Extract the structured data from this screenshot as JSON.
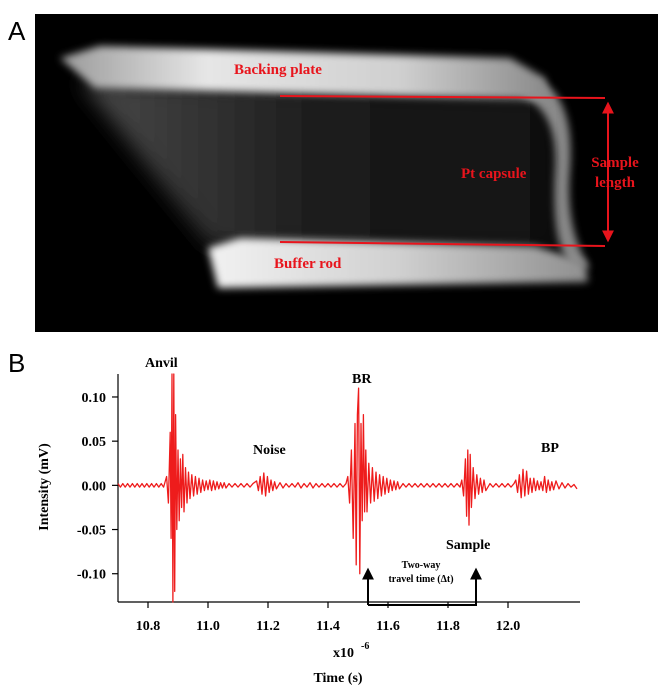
{
  "panel_a": {
    "label": "A",
    "annotations": [
      "Backing plate",
      "Pt capsule",
      "Buffer rod",
      "Sample",
      "length"
    ]
  },
  "chart_data": {
    "type": "line",
    "panel_label": "B",
    "x_label": "Time (s)",
    "y_label": "Intensity (mV)",
    "x_multiplier": "x10",
    "x_multiplier_exponent": "-6",
    "annotations": [
      "Anvil",
      "Noise",
      "BR",
      "Sample",
      "BP",
      "Two-way",
      "travel time (Δt)"
    ],
    "color": "#ee1c1c",
    "xlim": [
      10.7,
      12.24
    ],
    "ylim": [
      -0.132,
      0.126
    ],
    "xticks": [
      10.8,
      {
        "value": 11.0,
        "label": "11.0"
      },
      11.2,
      11.4,
      11.6,
      11.8,
      {
        "value": 12.0,
        "label": "12.0"
      }
    ],
    "yticks": [
      {
        "value": 0.1,
        "label": "0.10"
      },
      0.05,
      {
        "value": 0.0,
        "label": "0.00"
      },
      -0.05,
      {
        "value": -0.1,
        "label": "-0.10"
      }
    ],
    "x": [
      10.7,
      10.708,
      10.716,
      10.724,
      10.732,
      10.74,
      10.748,
      10.756,
      10.764,
      10.772,
      10.78,
      10.788,
      10.796,
      10.804,
      10.812,
      10.82,
      10.828,
      10.836,
      10.844,
      10.852,
      10.862,
      10.868,
      10.874,
      10.877,
      10.88,
      10.883,
      10.886,
      10.889,
      10.892,
      10.896,
      10.9,
      10.904,
      10.908,
      10.912,
      10.916,
      10.92,
      10.925,
      10.93,
      10.935,
      10.94,
      10.946,
      10.952,
      10.958,
      10.964,
      10.97,
      10.976,
      10.982,
      10.988,
      10.994,
      11.0,
      11.006,
      11.012,
      11.018,
      11.024,
      11.03,
      11.036,
      11.042,
      11.048,
      11.054,
      11.06,
      11.07,
      11.08,
      11.09,
      11.1,
      11.11,
      11.12,
      11.13,
      11.14,
      11.15,
      11.162,
      11.168,
      11.174,
      11.18,
      11.186,
      11.192,
      11.198,
      11.204,
      11.21,
      11.216,
      11.222,
      11.228,
      11.24,
      11.25,
      11.26,
      11.27,
      11.28,
      11.29,
      11.3,
      11.31,
      11.32,
      11.33,
      11.34,
      11.35,
      11.36,
      11.37,
      11.38,
      11.39,
      11.4,
      11.41,
      11.42,
      11.43,
      11.44,
      11.45,
      11.46,
      11.466,
      11.472,
      11.478,
      11.484,
      11.49,
      11.494,
      11.498,
      11.502,
      11.506,
      11.51,
      11.514,
      11.518,
      11.522,
      11.526,
      11.53,
      11.536,
      11.542,
      11.548,
      11.554,
      11.56,
      11.566,
      11.572,
      11.578,
      11.584,
      11.59,
      11.596,
      11.602,
      11.608,
      11.614,
      11.62,
      11.626,
      11.632,
      11.638,
      11.65,
      11.66,
      11.67,
      11.68,
      11.69,
      11.7,
      11.71,
      11.72,
      11.73,
      11.74,
      11.75,
      11.76,
      11.77,
      11.78,
      11.79,
      11.8,
      11.81,
      11.82,
      11.83,
      11.84,
      11.846,
      11.852,
      11.858,
      11.862,
      11.866,
      11.87,
      11.874,
      11.878,
      11.884,
      11.89,
      11.896,
      11.902,
      11.908,
      11.914,
      11.92,
      11.926,
      11.94,
      11.95,
      11.96,
      11.97,
      11.98,
      11.99,
      12.0,
      12.01,
      12.02,
      12.026,
      12.032,
      12.038,
      12.044,
      12.05,
      12.056,
      12.062,
      12.068,
      12.074,
      12.08,
      12.086,
      12.092,
      12.098,
      12.104,
      12.11,
      12.116,
      12.122,
      12.128,
      12.134,
      12.14,
      12.146,
      12.152,
      12.16,
      12.17,
      12.18,
      12.19,
      12.2,
      12.21,
      12.22,
      12.23
    ],
    "values": [
      0.002,
      -0.002,
      0.002,
      -0.002,
      0.002,
      -0.002,
      0.002,
      -0.002,
      0.002,
      -0.002,
      0.002,
      -0.002,
      0.002,
      -0.002,
      0.002,
      -0.002,
      0.002,
      -0.002,
      0.002,
      -0.002,
      0.01,
      -0.02,
      0.06,
      -0.06,
      0.126,
      -0.132,
      0.126,
      -0.12,
      0.08,
      -0.05,
      0.04,
      -0.04,
      0.03,
      -0.025,
      0.035,
      -0.03,
      0.02,
      -0.02,
      0.015,
      -0.015,
      0.012,
      -0.012,
      0.01,
      -0.01,
      0.008,
      -0.008,
      0.006,
      -0.006,
      0.005,
      -0.005,
      0.006,
      -0.006,
      0.005,
      -0.005,
      0.004,
      -0.004,
      0.003,
      -0.003,
      0.003,
      -0.003,
      0.002,
      -0.002,
      0.002,
      -0.002,
      0.002,
      -0.002,
      0.002,
      -0.002,
      0.002,
      0.005,
      -0.006,
      0.01,
      -0.01,
      0.014,
      -0.012,
      0.01,
      -0.008,
      0.006,
      -0.006,
      0.004,
      -0.004,
      0.003,
      -0.003,
      0.002,
      -0.002,
      0.002,
      -0.002,
      0.003,
      -0.003,
      0.002,
      -0.002,
      0.003,
      -0.003,
      0.002,
      -0.002,
      0.002,
      -0.002,
      0.002,
      -0.002,
      0.002,
      -0.002,
      0.002,
      -0.002,
      0.002,
      0.01,
      -0.02,
      0.04,
      -0.06,
      0.07,
      -0.09,
      0.08,
      0.11,
      -0.1,
      0.07,
      -0.04,
      0.08,
      -0.03,
      0.04,
      -0.03,
      0.025,
      -0.02,
      0.02,
      -0.018,
      0.015,
      -0.015,
      0.012,
      -0.012,
      0.01,
      -0.01,
      0.008,
      -0.008,
      0.006,
      -0.006,
      0.005,
      -0.005,
      0.004,
      -0.004,
      0.002,
      -0.002,
      0.002,
      -0.002,
      0.002,
      -0.002,
      0.002,
      -0.002,
      0.002,
      -0.002,
      0.002,
      -0.002,
      0.002,
      -0.002,
      0.002,
      -0.002,
      0.002,
      -0.002,
      0.002,
      -0.002,
      0.006,
      -0.012,
      0.03,
      -0.035,
      0.04,
      -0.045,
      0.035,
      -0.025,
      0.02,
      -0.015,
      0.012,
      -0.01,
      0.008,
      -0.008,
      0.006,
      -0.006,
      0.002,
      -0.002,
      0.002,
      -0.002,
      0.002,
      -0.002,
      0.002,
      -0.002,
      0.002,
      0.006,
      -0.008,
      0.012,
      -0.014,
      0.018,
      -0.012,
      0.016,
      -0.01,
      0.008,
      -0.008,
      0.008,
      -0.006,
      0.005,
      -0.005,
      0.004,
      -0.006,
      0.01,
      -0.008,
      0.006,
      -0.006,
      0.004,
      -0.005,
      0.005,
      -0.004,
      0.003,
      -0.003,
      0.002,
      -0.002,
      0.001,
      -0.004
    ]
  }
}
